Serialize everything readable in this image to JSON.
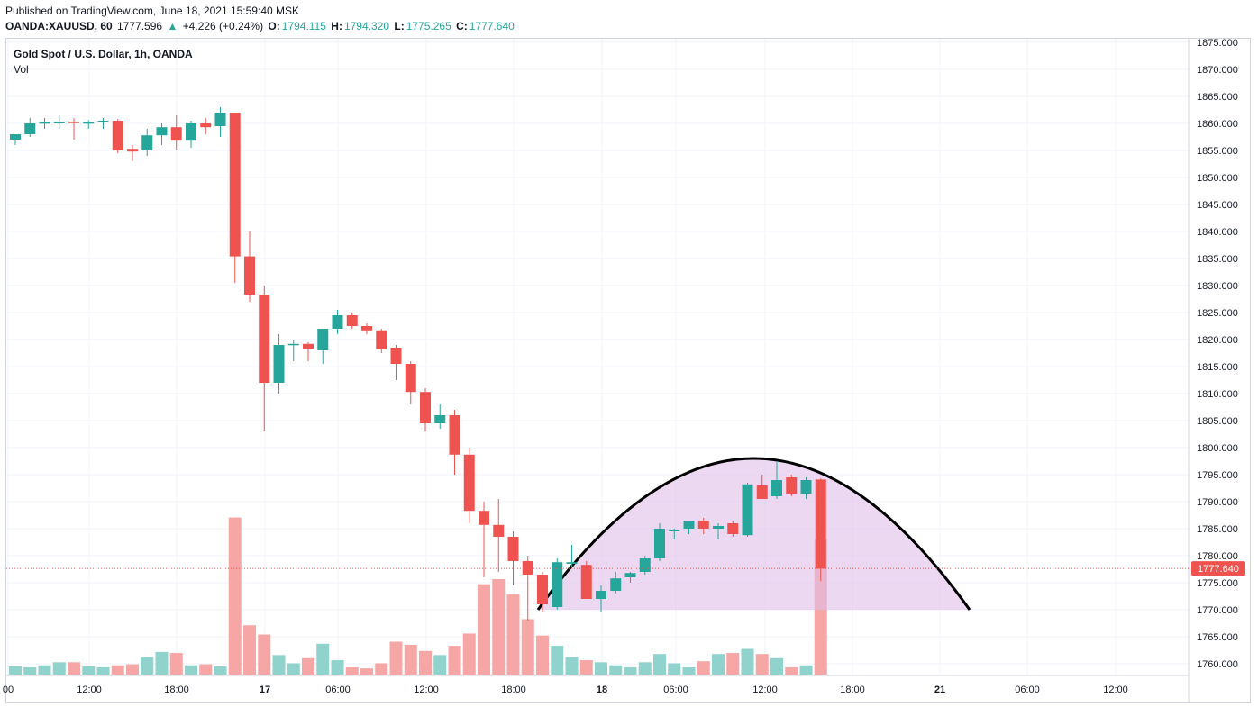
{
  "header": {
    "published": "Published on TradingView.com, June 18, 2021 15:59:40 MSK",
    "symbol": "OANDA:XAUUSD, 60",
    "last": "1777.596",
    "change_arrow": "▲",
    "change": "+4.226 (+0.24%)",
    "o_label": "O:",
    "o_value": "1794.115",
    "h_label": "H:",
    "h_value": "1794.320",
    "l_label": "L:",
    "l_value": "1775.265",
    "c_label": "C:",
    "c_value": "1777.640"
  },
  "legend": {
    "title": "Gold Spot / U.S. Dollar, 1h, OANDA",
    "volume": "Vol"
  },
  "colors": {
    "up": "#26a69a",
    "down": "#ef5350",
    "vol_up": "#8fd3cc",
    "vol_down": "#f5a6a5",
    "grid": "#f0f3fa",
    "arc": "#000000",
    "arc_fill": "#e1bee7"
  },
  "chart_data": {
    "type": "candlestick",
    "y_range": [
      1758,
      1876
    ],
    "y_ticks": [
      "1760.000",
      "1765.000",
      "1770.000",
      "1775.000",
      "1780.000",
      "1785.000",
      "1790.000",
      "1795.000",
      "1800.000",
      "1805.000",
      "1810.000",
      "1815.000",
      "1820.000",
      "1825.000",
      "1830.000",
      "1835.000",
      "1840.000",
      "1845.000",
      "1850.000",
      "1855.000",
      "1860.000",
      "1865.000",
      "1870.000",
      "1875.000"
    ],
    "x_labels": [
      "00",
      "12:00",
      "18:00",
      "17",
      "06:00",
      "12:00",
      "18:00",
      "18",
      "06:00",
      "12:00",
      "18:00",
      "21",
      "06:00",
      "12:00"
    ],
    "x_label_bold": [
      "17",
      "18",
      "21"
    ],
    "current_price": "1777.640",
    "candles": [
      {
        "o": 1857,
        "h": 1858,
        "l": 1856,
        "c": 1858,
        "v": 0.8
      },
      {
        "o": 1858,
        "h": 1861,
        "l": 1857.5,
        "c": 1860,
        "v": 0.7
      },
      {
        "o": 1860,
        "h": 1861,
        "l": 1859,
        "c": 1860.2,
        "v": 0.9
      },
      {
        "o": 1860,
        "h": 1861.5,
        "l": 1859,
        "c": 1860.3,
        "v": 1.2
      },
      {
        "o": 1860.3,
        "h": 1861,
        "l": 1857,
        "c": 1860.1,
        "v": 1.2
      },
      {
        "o": 1860,
        "h": 1860.6,
        "l": 1859,
        "c": 1860.2,
        "v": 0.8
      },
      {
        "o": 1860.2,
        "h": 1861,
        "l": 1859,
        "c": 1860.5,
        "v": 0.7
      },
      {
        "o": 1860.5,
        "h": 1860.8,
        "l": 1854.5,
        "c": 1855,
        "v": 0.9
      },
      {
        "o": 1855.3,
        "h": 1856,
        "l": 1853,
        "c": 1854.8,
        "v": 1.0
      },
      {
        "o": 1855,
        "h": 1859,
        "l": 1854,
        "c": 1857.8,
        "v": 1.7
      },
      {
        "o": 1857.8,
        "h": 1860,
        "l": 1856,
        "c": 1859.3,
        "v": 2.2
      },
      {
        "o": 1859.3,
        "h": 1861.5,
        "l": 1855,
        "c": 1856.8,
        "v": 2.1
      },
      {
        "o": 1856.8,
        "h": 1860.5,
        "l": 1855.5,
        "c": 1860,
        "v": 0.9
      },
      {
        "o": 1860,
        "h": 1861,
        "l": 1858,
        "c": 1859.3,
        "v": 1.0
      },
      {
        "o": 1859.5,
        "h": 1863,
        "l": 1857.5,
        "c": 1862,
        "v": 0.8
      },
      {
        "o": 1862,
        "h": 1862,
        "l": 1830.5,
        "c": 1835.4,
        "v": 15.3
      },
      {
        "o": 1835.4,
        "h": 1840,
        "l": 1827,
        "c": 1828.3,
        "v": 4.8
      },
      {
        "o": 1828.3,
        "h": 1830,
        "l": 1803,
        "c": 1812,
        "v": 3.9
      },
      {
        "o": 1812,
        "h": 1821,
        "l": 1810,
        "c": 1819,
        "v": 1.9
      },
      {
        "o": 1819,
        "h": 1820,
        "l": 1816,
        "c": 1819.2,
        "v": 1.1
      },
      {
        "o": 1819.2,
        "h": 1819.5,
        "l": 1816,
        "c": 1818.3,
        "v": 1.6
      },
      {
        "o": 1818,
        "h": 1822,
        "l": 1815.5,
        "c": 1822,
        "v": 3.0
      },
      {
        "o": 1822,
        "h": 1825.5,
        "l": 1821,
        "c": 1824.5,
        "v": 1.4
      },
      {
        "o": 1824.5,
        "h": 1825,
        "l": 1822,
        "c": 1822.5,
        "v": 0.7
      },
      {
        "o": 1822.5,
        "h": 1823,
        "l": 1821,
        "c": 1821.7,
        "v": 0.6
      },
      {
        "o": 1821.7,
        "h": 1822,
        "l": 1817.5,
        "c": 1818.2,
        "v": 1.1
      },
      {
        "o": 1818.5,
        "h": 1819,
        "l": 1812.5,
        "c": 1815.5,
        "v": 3.2
      },
      {
        "o": 1815.5,
        "h": 1816,
        "l": 1808,
        "c": 1810.3,
        "v": 2.9
      },
      {
        "o": 1810.3,
        "h": 1811,
        "l": 1803,
        "c": 1804.5,
        "v": 2.3
      },
      {
        "o": 1804.5,
        "h": 1808,
        "l": 1803.5,
        "c": 1806,
        "v": 1.9
      },
      {
        "o": 1806,
        "h": 1807,
        "l": 1795,
        "c": 1798.7,
        "v": 2.8
      },
      {
        "o": 1798.7,
        "h": 1800,
        "l": 1786,
        "c": 1788.3,
        "v": 4.0
      },
      {
        "o": 1788.3,
        "h": 1790,
        "l": 1776,
        "c": 1785.7,
        "v": 8.8
      },
      {
        "o": 1785.7,
        "h": 1790.5,
        "l": 1777,
        "c": 1783.5,
        "v": 9.3
      },
      {
        "o": 1783.5,
        "h": 1784.5,
        "l": 1774.5,
        "c": 1779,
        "v": 7.8
      },
      {
        "o": 1779,
        "h": 1780,
        "l": 1768,
        "c": 1776.5,
        "v": 5.4
      },
      {
        "o": 1776.5,
        "h": 1777,
        "l": 1769.5,
        "c": 1771,
        "v": 3.8
      },
      {
        "o": 1770.5,
        "h": 1779.5,
        "l": 1770,
        "c": 1778.8,
        "v": 2.8
      },
      {
        "o": 1778.5,
        "h": 1782,
        "l": 1778,
        "c": 1778.8,
        "v": 1.7
      },
      {
        "o": 1778.3,
        "h": 1779,
        "l": 1772,
        "c": 1772,
        "v": 1.4
      },
      {
        "o": 1772,
        "h": 1774.5,
        "l": 1769.5,
        "c": 1773.5,
        "v": 1.2
      },
      {
        "o": 1773.5,
        "h": 1777,
        "l": 1773,
        "c": 1775.8,
        "v": 0.9
      },
      {
        "o": 1776,
        "h": 1777,
        "l": 1775,
        "c": 1776.8,
        "v": 0.7
      },
      {
        "o": 1777,
        "h": 1780,
        "l": 1776.5,
        "c": 1779.5,
        "v": 1.2
      },
      {
        "o": 1779.5,
        "h": 1786,
        "l": 1779,
        "c": 1785,
        "v": 2.0
      },
      {
        "o": 1784.5,
        "h": 1785,
        "l": 1783,
        "c": 1784.8,
        "v": 1.1
      },
      {
        "o": 1785,
        "h": 1786.5,
        "l": 1784,
        "c": 1786.5,
        "v": 0.7
      },
      {
        "o": 1786.5,
        "h": 1787,
        "l": 1784,
        "c": 1785,
        "v": 1.3
      },
      {
        "o": 1785,
        "h": 1786,
        "l": 1783,
        "c": 1785.5,
        "v": 2.0
      },
      {
        "o": 1786,
        "h": 1786.5,
        "l": 1783.5,
        "c": 1784,
        "v": 2.1
      },
      {
        "o": 1783.8,
        "h": 1793.5,
        "l": 1783.5,
        "c": 1793.2,
        "v": 2.5
      },
      {
        "o": 1793,
        "h": 1795,
        "l": 1790.5,
        "c": 1790.5,
        "v": 2.0
      },
      {
        "o": 1791,
        "h": 1797.5,
        "l": 1790.5,
        "c": 1794,
        "v": 1.6
      },
      {
        "o": 1794.5,
        "h": 1795,
        "l": 1791,
        "c": 1791.5,
        "v": 0.7
      },
      {
        "o": 1791.5,
        "h": 1794.5,
        "l": 1790.5,
        "c": 1794,
        "v": 0.9
      },
      {
        "o": 1794.1,
        "h": 1794.3,
        "l": 1775.3,
        "c": 1777.6,
        "v": 13.2
      }
    ],
    "annotation": {
      "type": "arc",
      "start_index": 36,
      "end_index": 66,
      "base": 1770,
      "peak": 1798,
      "fill": "#e1bee7"
    }
  }
}
